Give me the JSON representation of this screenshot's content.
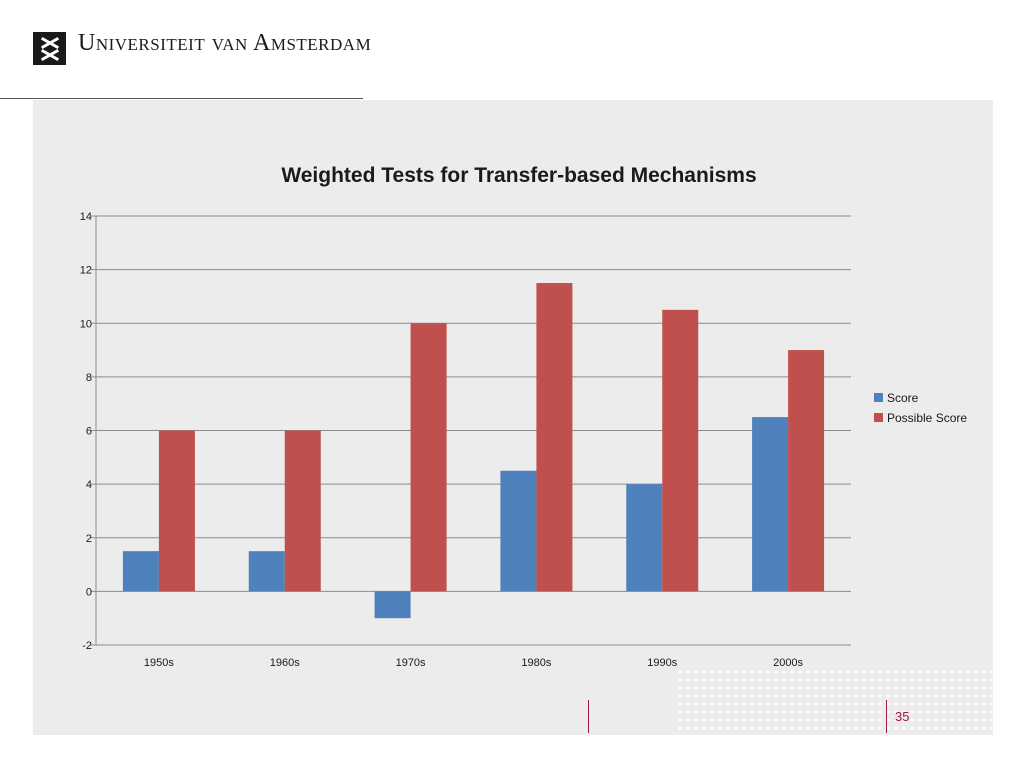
{
  "header": {
    "university_name": "Universiteit van Amsterdam",
    "logo": "uva-logo-icon"
  },
  "slide": {
    "page_number": "35"
  },
  "colors": {
    "score": "#4f81bd",
    "possible_score": "#c0504d",
    "accent": "#a01a3e"
  },
  "chart_data": {
    "type": "bar",
    "title": "Weighted Tests for Transfer-based Mechanisms",
    "xlabel": "",
    "ylabel": "",
    "categories": [
      "1950s",
      "1960s",
      "1970s",
      "1980s",
      "1990s",
      "2000s"
    ],
    "series": [
      {
        "name": "Score",
        "values": [
          1.5,
          1.5,
          -1,
          4.5,
          4,
          6.5
        ]
      },
      {
        "name": "Possible Score",
        "values": [
          6,
          6,
          10,
          11.5,
          10.5,
          9
        ]
      }
    ],
    "ylim": [
      -2,
      14
    ],
    "yticks": [
      "-2",
      "0",
      "2",
      "4",
      "6",
      "8",
      "10",
      "12",
      "14"
    ],
    "grid": true,
    "legend_position": "right"
  }
}
